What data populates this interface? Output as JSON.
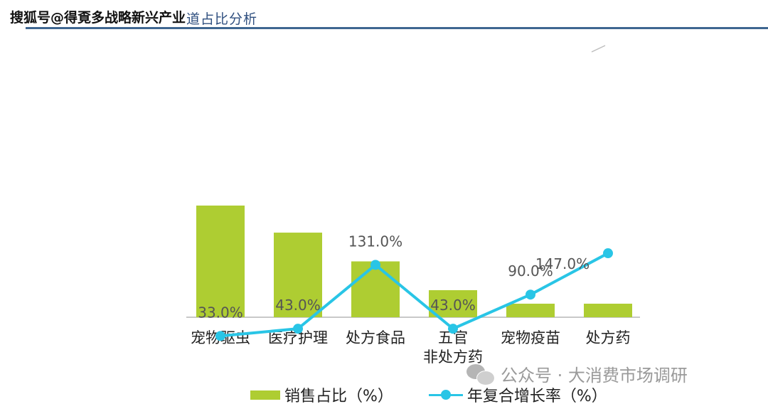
{
  "header": {
    "title": "道占比分析",
    "watermark": "搜狐号@得覔多战略新兴产业"
  },
  "watermark_bottom": "公众号 · 大消费市场调研",
  "colors": {
    "bar": "#aecd32",
    "line": "#29c5e6",
    "header_rule": "#3f6691",
    "axis": "#c8c8c8",
    "label": "#555555"
  },
  "chart_data": {
    "type": "bar",
    "categories": [
      [
        "宠物驱虫"
      ],
      [
        "医疗护理"
      ],
      [
        "处方食品"
      ],
      [
        "五官",
        "非处方药"
      ],
      [
        "宠物疫苗"
      ],
      [
        "处方药"
      ]
    ],
    "series": [
      {
        "name": "销售占比（%）",
        "type": "bar",
        "values": [
          33,
          25,
          16.5,
          8,
          4,
          4
        ]
      },
      {
        "name": "年复合增长率（%）",
        "type": "line",
        "values": [
          33.0,
          43.0,
          131.0,
          43.0,
          90.0,
          147.0
        ],
        "labels": [
          "33.0%",
          "43.0%",
          "131.0%",
          "43.0%",
          "90.0%",
          "147.0%"
        ]
      }
    ],
    "title": "",
    "xlabel": "",
    "ylabel": "",
    "legend_position": "bottom",
    "grid": false
  }
}
